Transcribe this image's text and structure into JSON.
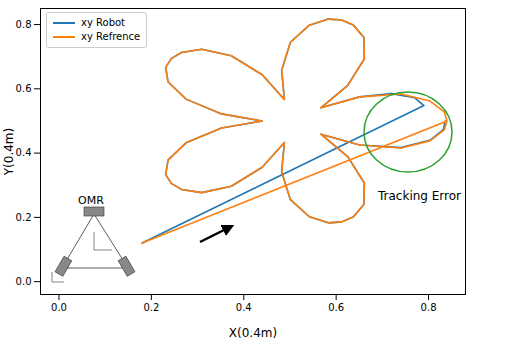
{
  "chart_data": {
    "type": "line",
    "x_label": "X(0.4m)",
    "y_label": "Y(0.4m)",
    "xlim": [
      -0.04,
      0.88
    ],
    "ylim": [
      -0.04,
      0.85
    ],
    "xticks": [
      {
        "value": 0,
        "label": "0.0"
      },
      0.2,
      0.4,
      0.6,
      0.8
    ],
    "yticks": [
      {
        "value": 0,
        "label": "0.0"
      },
      0.2,
      0.4,
      0.6,
      0.8
    ],
    "grid": false,
    "legend": "upper left",
    "annotations": [
      "OMR",
      "Tracking Error"
    ],
    "series": [
      {
        "name": "xy Robot",
        "color": "#1f77b4",
        "x": [
          0.18,
          0.79,
          0.77,
          0.72,
          0.651,
          0.567,
          0.625,
          0.661,
          0.66,
          0.637,
          0.612,
          0.583,
          0.542,
          0.501,
          0.482,
          0.488,
          0.44,
          0.373,
          0.309,
          0.265,
          0.243,
          0.231,
          0.236,
          0.275,
          0.352,
          0.44,
          0.352,
          0.275,
          0.236,
          0.231,
          0.243,
          0.265,
          0.309,
          0.373,
          0.44,
          0.488,
          0.482,
          0.501,
          0.542,
          0.583,
          0.612,
          0.637,
          0.66,
          0.661,
          0.625,
          0.567,
          0.651,
          0.74,
          0.803,
          0.832,
          0.836
        ],
        "values": [
          0.12,
          0.548,
          0.572,
          0.585,
          0.575,
          0.541,
          0.611,
          0.693,
          0.76,
          0.799,
          0.814,
          0.817,
          0.798,
          0.745,
          0.658,
          0.567,
          0.644,
          0.703,
          0.723,
          0.713,
          0.694,
          0.667,
          0.622,
          0.568,
          0.522,
          0.5,
          0.478,
          0.432,
          0.378,
          0.333,
          0.306,
          0.287,
          0.277,
          0.297,
          0.356,
          0.433,
          0.342,
          0.255,
          0.202,
          0.183,
          0.186,
          0.201,
          0.24,
          0.307,
          0.389,
          0.459,
          0.425,
          0.417,
          0.44,
          0.473,
          0.5
        ]
      },
      {
        "name": "xy Refrence",
        "color": "#ff7f0e",
        "x": [
          0.18,
          0.84,
          0.834,
          0.803,
          0.74,
          0.651,
          0.567,
          0.625,
          0.661,
          0.66,
          0.637,
          0.612,
          0.583,
          0.542,
          0.501,
          0.482,
          0.488,
          0.44,
          0.373,
          0.309,
          0.265,
          0.243,
          0.231,
          0.236,
          0.275,
          0.352,
          0.44,
          0.352,
          0.275,
          0.236,
          0.231,
          0.243,
          0.265,
          0.309,
          0.373,
          0.44,
          0.488,
          0.482,
          0.501,
          0.542,
          0.583,
          0.612,
          0.637,
          0.66,
          0.661,
          0.625,
          0.567,
          0.651,
          0.74,
          0.803,
          0.834,
          0.84
        ],
        "values": [
          0.12,
          0.5,
          0.528,
          0.562,
          0.584,
          0.575,
          0.541,
          0.611,
          0.693,
          0.76,
          0.799,
          0.814,
          0.817,
          0.798,
          0.745,
          0.658,
          0.567,
          0.644,
          0.703,
          0.723,
          0.713,
          0.694,
          0.667,
          0.622,
          0.568,
          0.522,
          0.5,
          0.478,
          0.432,
          0.378,
          0.333,
          0.306,
          0.287,
          0.277,
          0.297,
          0.356,
          0.433,
          0.342,
          0.255,
          0.202,
          0.183,
          0.186,
          0.201,
          0.24,
          0.307,
          0.389,
          0.459,
          0.425,
          0.416,
          0.438,
          0.472,
          0.5
        ]
      }
    ]
  }
}
